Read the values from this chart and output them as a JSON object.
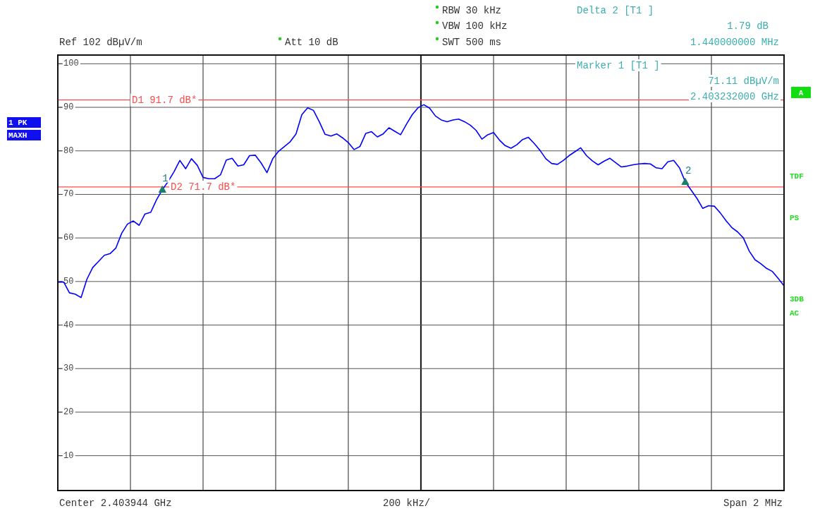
{
  "chart_data": {
    "type": "line",
    "categories": [
      null,
      null,
      null,
      null,
      null,
      null,
      null,
      null,
      null,
      null,
      null,
      null,
      null,
      null,
      null,
      null,
      null,
      null,
      null,
      null,
      null,
      null,
      null,
      null,
      null,
      null,
      null,
      null,
      null,
      null,
      null,
      null,
      null,
      null,
      null,
      null,
      null,
      null,
      null,
      null,
      null,
      null,
      null,
      null,
      null,
      null,
      null,
      null,
      null,
      null,
      null,
      null,
      null,
      null,
      null,
      null,
      null,
      null,
      null,
      null,
      null,
      null,
      null,
      null,
      null,
      null,
      null,
      null,
      null,
      null,
      null,
      null,
      null,
      null,
      null,
      null,
      null,
      null,
      null,
      null,
      null,
      null,
      null,
      null,
      null,
      null,
      null,
      null,
      null,
      null,
      null,
      null,
      null,
      null,
      null,
      null,
      null,
      null,
      null,
      null,
      null,
      null,
      null,
      null,
      null,
      null,
      null,
      null,
      null,
      null,
      null,
      null,
      null,
      null,
      null,
      null,
      null,
      null,
      null,
      null,
      null,
      null,
      null,
      null,
      null,
      null
    ],
    "ylim": [
      2,
      102
    ],
    "yticks": [
      10,
      20,
      30,
      40,
      50,
      60,
      70,
      80,
      90,
      100
    ],
    "tick_labels": "y",
    "grid": true,
    "marker": "none",
    "line_style": "solid",
    "series": [
      {
        "color": "#0000ff",
        "values": [
          49.8,
          49.9,
          47.4,
          47.1,
          46.3,
          50.5,
          53.2,
          54.6,
          56.0,
          56.4,
          57.7,
          61.1,
          63.2,
          63.9,
          62.9,
          65.5,
          65.9,
          68.8,
          71.11,
          73.0,
          75.2,
          77.8,
          75.9,
          78.2,
          76.7,
          73.9,
          73.6,
          73.6,
          74.5,
          77.9,
          78.3,
          76.5,
          76.8,
          78.9,
          79.0,
          77.2,
          75.0,
          78.2,
          79.9,
          81.0,
          82.1,
          83.9,
          88.3,
          89.9,
          89.3,
          86.7,
          83.8,
          83.4,
          83.9,
          83.0,
          81.9,
          80.3,
          81.0,
          84.0,
          84.4,
          83.2,
          83.9,
          85.3,
          84.5,
          83.7,
          86.1,
          88.3,
          89.9,
          90.6,
          89.8,
          88.0,
          87.1,
          86.7,
          87.1,
          87.3,
          86.7,
          85.9,
          84.7,
          82.7,
          83.7,
          84.2,
          82.5,
          81.2,
          80.6,
          81.4,
          82.6,
          83.1,
          81.7,
          80.1,
          78.2,
          77.1,
          76.9,
          77.8,
          78.9,
          79.8,
          80.7,
          78.9,
          77.7,
          76.8,
          77.6,
          78.3,
          77.3,
          76.3,
          76.5,
          76.8,
          77.0,
          77.1,
          77.0,
          76.1,
          75.9,
          77.5,
          77.8,
          76.1,
          72.9,
          71.0,
          69.1,
          66.8,
          67.4,
          67.3,
          65.8,
          64.0,
          62.4,
          61.4,
          60.0,
          57.0,
          55.0,
          54.1,
          53.0,
          52.3,
          50.7,
          49.0
        ]
      },
      {
        "type": "scatter",
        "name": "1",
        "color": "#1a7f6a",
        "marker": "triangle",
        "values": [
          null,
          null,
          null,
          null,
          null,
          null,
          null,
          null,
          null,
          null,
          null,
          null,
          null,
          null,
          null,
          null,
          null,
          null,
          71.11,
          null,
          null,
          null,
          null,
          null,
          null,
          null,
          null,
          null,
          null,
          null,
          null,
          null,
          null,
          null,
          null,
          null,
          null,
          null,
          null,
          null,
          null,
          null,
          null,
          null,
          null,
          null,
          null,
          null,
          null,
          null,
          null,
          null,
          null,
          null,
          null,
          null,
          null,
          null,
          null,
          null,
          null,
          null,
          null,
          null,
          null,
          null,
          null,
          null,
          null,
          null,
          null,
          null,
          null,
          null,
          null,
          null,
          null,
          null,
          null,
          null,
          null,
          null,
          null,
          null,
          null,
          null,
          null,
          null,
          null,
          null,
          null,
          null,
          null,
          null,
          null,
          null,
          null,
          null,
          null,
          null,
          null,
          null,
          null,
          null,
          null,
          null,
          null,
          null,
          null,
          null,
          null,
          null,
          null,
          null,
          null,
          null,
          null,
          null,
          null,
          null,
          null,
          null,
          null,
          null,
          null,
          null
        ]
      },
      {
        "type": "scatter",
        "name": "2",
        "color": "#1a7f6a",
        "marker": "triangle",
        "values": [
          null,
          null,
          null,
          null,
          null,
          null,
          null,
          null,
          null,
          null,
          null,
          null,
          null,
          null,
          null,
          null,
          null,
          null,
          null,
          null,
          null,
          null,
          null,
          null,
          null,
          null,
          null,
          null,
          null,
          null,
          null,
          null,
          null,
          null,
          null,
          null,
          null,
          null,
          null,
          null,
          null,
          null,
          null,
          null,
          null,
          null,
          null,
          null,
          null,
          null,
          null,
          null,
          null,
          null,
          null,
          null,
          null,
          null,
          null,
          null,
          null,
          null,
          null,
          null,
          null,
          null,
          null,
          null,
          null,
          null,
          null,
          null,
          null,
          null,
          null,
          null,
          null,
          null,
          null,
          null,
          null,
          null,
          null,
          null,
          null,
          null,
          null,
          null,
          null,
          null,
          null,
          null,
          null,
          null,
          null,
          null,
          null,
          null,
          null,
          null,
          null,
          null,
          null,
          null,
          null,
          null,
          null,
          null,
          72.9,
          null,
          null,
          null,
          null,
          null,
          null,
          null,
          null,
          null,
          null,
          null,
          null,
          null,
          null,
          null,
          null,
          null
        ]
      }
    ],
    "ref_lines": [
      {
        "axis": "y",
        "value": 91.7,
        "label": "D1 91.7 dB*",
        "color": "#ff4a4a"
      },
      {
        "axis": "y",
        "value": 71.7,
        "label": "D2 71.7 dB*",
        "color": "#ff4a4a"
      }
    ],
    "annotations": [
      "Ref  102 dBµV/m",
      "Att  10 dB",
      "RBW  30 kHz",
      "VBW  100 kHz",
      "SWT  500 ms",
      "Delta 2 [T1 ]",
      "1.79 dB",
      "1.440000000 MHz",
      "Marker 1 [T1 ]",
      "71.11 dBµV/m",
      "2.403232000 GHz",
      "1 PK",
      "MAXH",
      "A",
      "TDF",
      "PS",
      "3DB",
      "AC",
      "Center 2.403944 GHz",
      "200 kHz/",
      "Span 2 MHz"
    ]
  }
}
